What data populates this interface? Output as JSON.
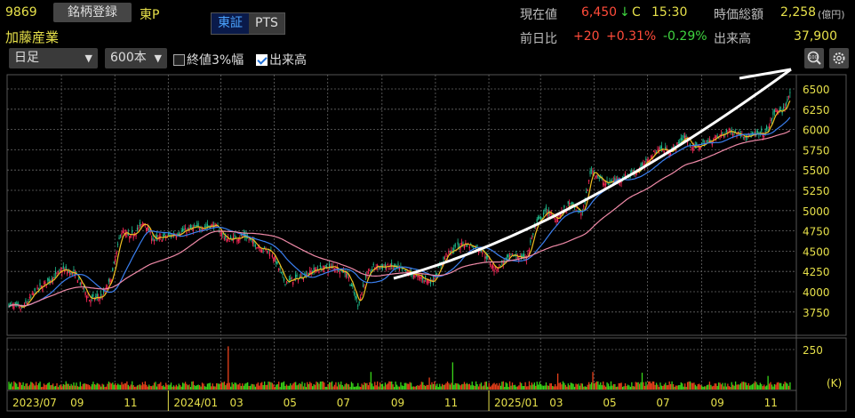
{
  "header": {
    "code": "9869",
    "register_button": "銘柄登録",
    "market": "東P",
    "name": "加藤産業",
    "exchange_toggle": [
      "東証",
      "PTS"
    ],
    "exchange_active": "東証",
    "period_select": "日足",
    "bars_select": "600本",
    "checkbox_close3": {
      "label": "終値3%幅",
      "checked": false
    },
    "checkbox_volume": {
      "label": "出来高",
      "checked": true
    }
  },
  "quote": {
    "price_label": "現在値",
    "price": "6,450",
    "arrow": "↓",
    "flag": "C",
    "time": "15:30",
    "mcap_label": "時価総額",
    "mcap": "2,258",
    "mcap_unit": "(億円)",
    "change_label": "前日比",
    "change": "+20",
    "change_pct": "+0.31%",
    "other_pct": "-0.29%",
    "volume_label": "出来高",
    "volume": "37,900"
  },
  "icons": {
    "zoom": "zoom-in-icon",
    "settings": "gear-icon"
  },
  "colors": {
    "up": "#ff2a5a",
    "down": "#1fbf8f",
    "ma_short": "#f0c020",
    "ma_mid": "#3a7ff0",
    "ma_long": "#f08aa8",
    "vol_up": "#e8401a",
    "vol_down": "#38d418",
    "axis_text": "#e6e04a",
    "annotation": "#ffffff"
  },
  "chart_data": {
    "type": "candlestick",
    "y_ticks": [
      6500,
      6250,
      6000,
      5750,
      5500,
      5250,
      5000,
      4750,
      4500,
      4250,
      4000,
      3750
    ],
    "ylim": [
      3620,
      6680
    ],
    "x_tick_labels": [
      "2023/07",
      "09",
      "11",
      "2024/01",
      "03",
      "05",
      "07",
      "09",
      "11",
      "2025/01",
      "03",
      "05",
      "07",
      "09",
      "11"
    ],
    "x_tick_dates": [
      "2023-07-01",
      "2023-09-01",
      "2023-11-01",
      "2024-01-01",
      "2024-03-01",
      "2024-05-01",
      "2024-07-01",
      "2024-09-01",
      "2024-11-01",
      "2025-01-01",
      "2025-03-01",
      "2025-05-01",
      "2025-07-01",
      "2025-09-01",
      "2025-11-01"
    ],
    "grid": true,
    "close_points": [
      [
        "2023-07-03",
        3840
      ],
      [
        "2023-07-18",
        3790
      ],
      [
        "2023-08-03",
        4010
      ],
      [
        "2023-09-03",
        4275
      ],
      [
        "2023-09-18",
        4200
      ],
      [
        "2023-10-03",
        3900
      ],
      [
        "2023-10-18",
        3945
      ],
      [
        "2023-10-28",
        4165
      ],
      [
        "2023-11-08",
        4745
      ],
      [
        "2023-11-18",
        4670
      ],
      [
        "2023-12-05",
        4855
      ],
      [
        "2023-12-15",
        4640
      ],
      [
        "2024-01-03",
        4690
      ],
      [
        "2024-01-28",
        4780
      ],
      [
        "2024-02-23",
        4820
      ],
      [
        "2024-03-08",
        4640
      ],
      [
        "2024-03-28",
        4690
      ],
      [
        "2024-04-12",
        4560
      ],
      [
        "2024-04-28",
        4490
      ],
      [
        "2024-05-13",
        4120
      ],
      [
        "2024-05-28",
        4165
      ],
      [
        "2024-06-18",
        4275
      ],
      [
        "2024-07-08",
        4310
      ],
      [
        "2024-07-23",
        4230
      ],
      [
        "2024-08-05",
        3835
      ],
      [
        "2024-08-13",
        4165
      ],
      [
        "2024-08-23",
        4310
      ],
      [
        "2024-09-13",
        4310
      ],
      [
        "2024-10-03",
        4230
      ],
      [
        "2024-10-28",
        4120
      ],
      [
        "2024-11-13",
        4450
      ],
      [
        "2024-12-03",
        4600
      ],
      [
        "2024-12-23",
        4525
      ],
      [
        "2025-01-08",
        4275
      ],
      [
        "2025-01-28",
        4450
      ],
      [
        "2025-02-13",
        4415
      ],
      [
        "2025-02-23",
        4820
      ],
      [
        "2025-03-08",
        5000
      ],
      [
        "2025-03-18",
        4890
      ],
      [
        "2025-04-03",
        5075
      ],
      [
        "2025-04-18",
        4965
      ],
      [
        "2025-04-28",
        5515
      ],
      [
        "2025-05-13",
        5330
      ],
      [
        "2025-06-03",
        5405
      ],
      [
        "2025-06-23",
        5515
      ],
      [
        "2025-07-13",
        5765
      ],
      [
        "2025-07-28",
        5730
      ],
      [
        "2025-08-13",
        5920
      ],
      [
        "2025-08-23",
        5765
      ],
      [
        "2025-09-13",
        5875
      ],
      [
        "2025-10-03",
        5985
      ],
      [
        "2025-10-23",
        5920
      ],
      [
        "2025-11-13",
        5950
      ],
      [
        "2025-11-25",
        6250
      ],
      [
        "2025-12-01",
        6200
      ],
      [
        "2025-12-12",
        6450
      ]
    ],
    "moving_averages": [
      "short",
      "mid",
      "long"
    ],
    "volume": {
      "unit": "(K)",
      "y_tick": 250,
      "ylim": [
        0,
        300
      ],
      "typical": 40,
      "spikes": [
        [
          "2024-03-10",
          270
        ],
        [
          "2024-11-20",
          170
        ],
        [
          "2024-08-20",
          110
        ],
        [
          "2025-04-30",
          110
        ],
        [
          "2025-03-20",
          100
        ],
        [
          "2025-06-25",
          105
        ],
        [
          "2024-10-25",
          75
        ],
        [
          "2025-11-15",
          85
        ]
      ]
    },
    "annotation": {
      "type": "upward-curve-arrow",
      "from": [
        "2024-09-13",
        4250
      ],
      "to": [
        "2025-12-30",
        6700
      ]
    }
  }
}
